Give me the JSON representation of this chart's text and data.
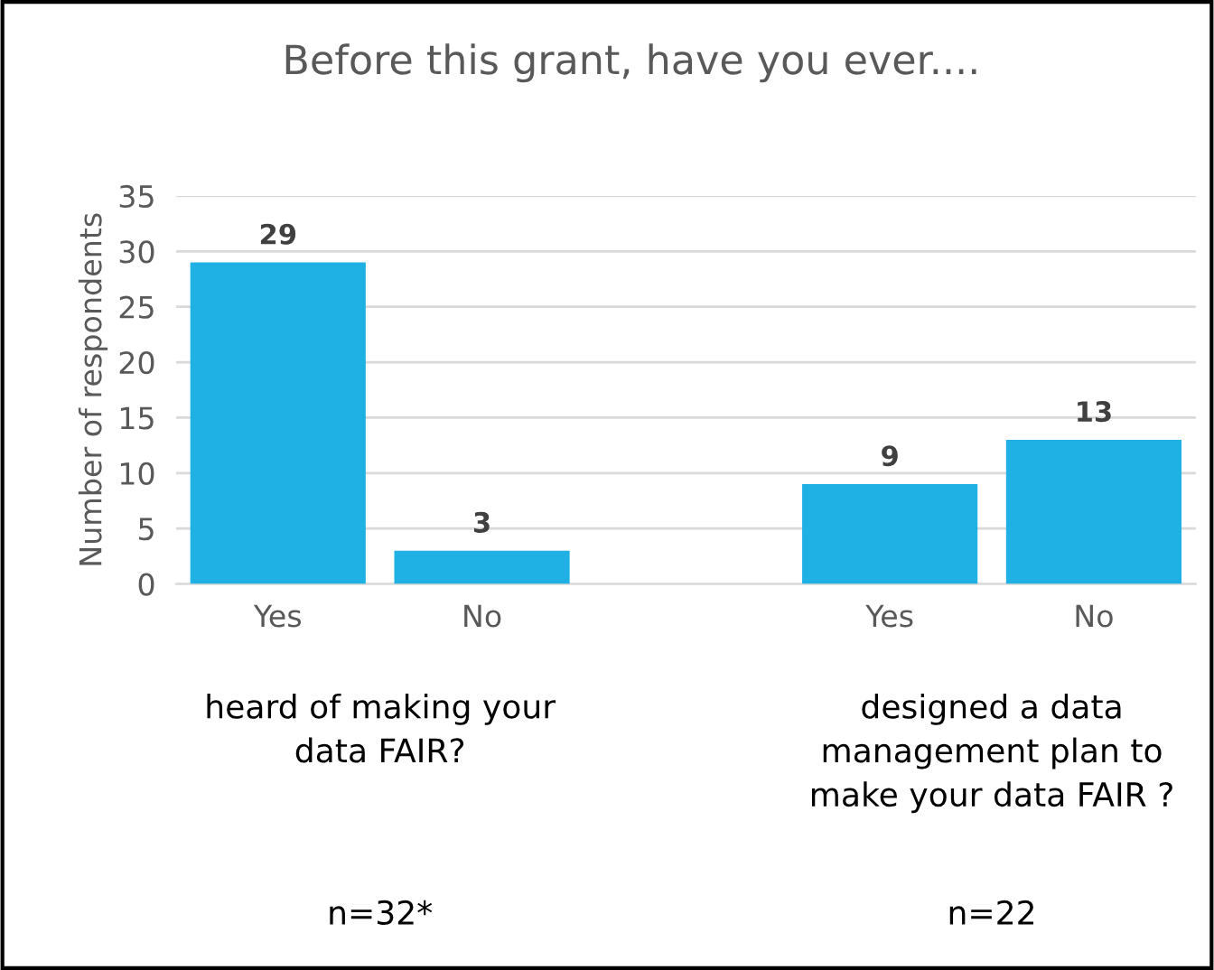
{
  "chart_data": {
    "type": "bar",
    "title": "Before this grant, have you ever....",
    "ylabel": "Number of respondents",
    "categories": [
      "Yes",
      "No",
      null,
      "Yes",
      "No"
    ],
    "values": [
      29,
      3,
      null,
      9,
      13
    ],
    "color": "#1fb1e3",
    "data_labels": true,
    "ylim": [
      0,
      35
    ],
    "yticks": [
      0,
      5,
      10,
      15,
      20,
      25,
      30,
      35
    ],
    "grid": "y",
    "legend": false,
    "annotations": [
      "heard of making your\ndata FAIR?",
      "designed a data\nmanagement plan to\nmake your data FAIR ?",
      "n=32*",
      "n=22"
    ]
  }
}
